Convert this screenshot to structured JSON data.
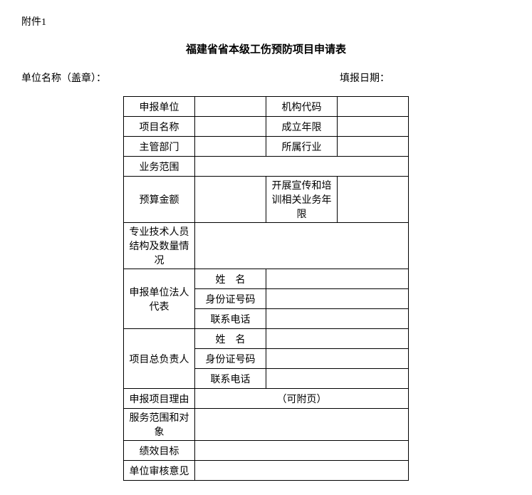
{
  "attachment_label": "附件1",
  "title": "福建省省本级工伤预防项目申请表",
  "header": {
    "unit_name_label": "单位名称（盖章）：",
    "fill_date_label": "填报日期："
  },
  "labels": {
    "reporting_unit": "申报单位",
    "org_code": "机构代码",
    "project_name": "项目名称",
    "est_years": "成立年限",
    "supervisor_dept": "主管部门",
    "industry": "所属行业",
    "business_scope": "业务范围",
    "budget_amount": "预算金额",
    "training_years": "开展宣传和培训相关业务年限",
    "staff_structure": "专业技术人员结构及数量情况",
    "legal_rep": "申报单位法人代表",
    "name": "姓　名",
    "id_number": "身份证号码",
    "phone": "联系电话",
    "project_leader": "项目总负责人",
    "reason": "申报项目理由",
    "attachable": "（可附页）",
    "service_scope": "服务范围和对象",
    "performance_goal": "绩效目标",
    "review_opinion": "单位审核意见"
  },
  "values": {
    "reporting_unit": "",
    "org_code": "",
    "project_name": "",
    "est_years": "",
    "supervisor_dept": "",
    "industry": "",
    "business_scope": "",
    "budget_amount": "",
    "training_years": "",
    "staff_structure": "",
    "legal_rep_name": "",
    "legal_rep_id": "",
    "legal_rep_phone": "",
    "leader_name": "",
    "leader_id": "",
    "leader_phone": "",
    "service_scope": "",
    "performance_goal": "",
    "review_opinion": ""
  }
}
